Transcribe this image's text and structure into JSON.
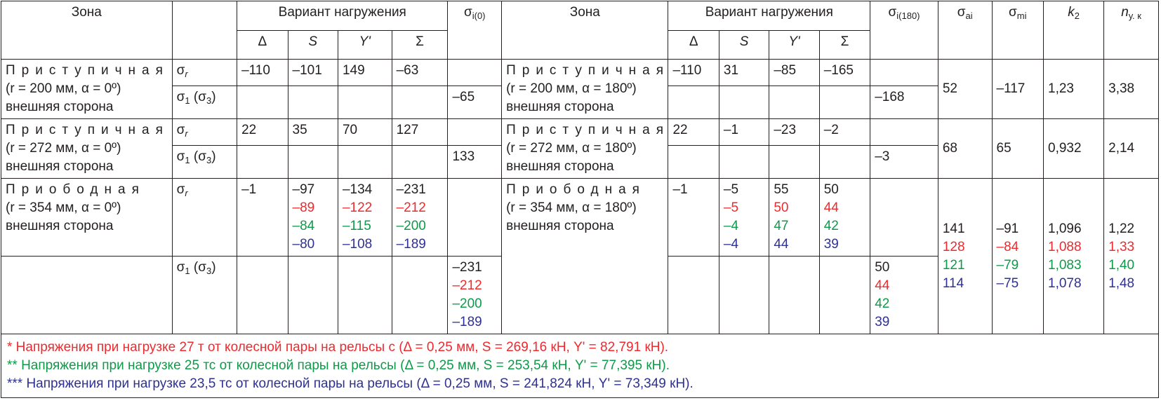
{
  "headers": {
    "zone": "Зона",
    "variant": "Вариант нагружения",
    "delta": "Δ",
    "s": "S",
    "y": "Y'",
    "sum": "Σ",
    "sigma_i0": "σi(0)",
    "zone2": "Зона",
    "variant2": "Вариант нагружения",
    "delta2": "Δ",
    "s2": "S",
    "y2": "Y'",
    "sum2": "Σ",
    "sigma_i180": "σi(180)",
    "sigma_ai": "σai",
    "sigma_mi": "σmi",
    "k2": "k2",
    "n_uk": "nу. к"
  },
  "row_labels": {
    "sigma_r": "σr",
    "sigma_1": "σ1 (σ3)"
  },
  "zones": [
    {
      "left_line1": "Приступичная",
      "left_line2": "(r = 200 мм, α = 0º)",
      "left_line3": "внешняя сторона",
      "right_line1": "Приступичная",
      "right_line2": "(r = 200 мм, α = 180º)",
      "right_line3": "внешняя сторона",
      "sr_left": [
        "–110",
        "–101",
        "149",
        "–63"
      ],
      "sr_right": [
        "–110",
        "31",
        "–85",
        "–165"
      ],
      "sigma_i0": "–65",
      "sigma_i180": "–168",
      "sigma_ai": "52",
      "sigma_mi": "–117",
      "k2": "1,23",
      "n_uk": "3,38"
    },
    {
      "left_line1": "Приступичная",
      "left_line2": "(r = 272 мм, α = 0º)",
      "left_line3": "внешняя сторона",
      "right_line1": "Приступичная",
      "right_line2": "(r = 272 мм, α = 180º)",
      "right_line3": "внешняя сторона",
      "sr_left": [
        "22",
        "35",
        "70",
        "127"
      ],
      "sr_right": [
        "22",
        "–1",
        "–23",
        "–2"
      ],
      "sigma_i0": "133",
      "sigma_i180": "–3",
      "sigma_ai": "68",
      "sigma_mi": "65",
      "k2": "0,932",
      "n_uk": "2,14"
    },
    {
      "left_line1": "Приободная",
      "left_line2": "(r = 354 мм, α = 0º)",
      "left_line3": "внешняя сторона",
      "right_line1": "Приободная",
      "right_line2": "(r = 354 мм, α = 180º)",
      "right_line3": "внешняя сторона",
      "sr_left": {
        "delta": [
          "–1"
        ],
        "s": [
          "–97",
          "–89",
          "–84",
          "–80"
        ],
        "y": [
          "–134",
          "–122",
          "–115",
          "–108"
        ],
        "sum": [
          "–231",
          "–212",
          "–200",
          "–189"
        ]
      },
      "sr_right": {
        "delta": [
          "–1"
        ],
        "s": [
          "–5",
          "–5",
          "–4",
          "–4"
        ],
        "y": [
          "55",
          "50",
          "47",
          "44"
        ],
        "sum": [
          "50",
          "44",
          "42",
          "39"
        ]
      },
      "sigma_i0": [
        "–231",
        "–212",
        "–200",
        "–189"
      ],
      "sigma_i180": [
        "50",
        "44",
        "42",
        "39"
      ],
      "sigma_ai": [
        "141",
        "128",
        "121",
        "114"
      ],
      "sigma_mi": [
        "–91",
        "–84",
        "–79",
        "–75"
      ],
      "k2": [
        "1,096",
        "1,088",
        "1,083",
        "1,078"
      ],
      "n_uk": [
        "1,22",
        "1,33",
        "1,40",
        "1,48"
      ]
    }
  ],
  "footnotes": [
    "* Напряжения при нагрузке 27 т от колесной пары на рельсы с (Δ = 0,25 мм, S = 269,16 кН, Y' = 82,791 кН).",
    "** Напряжения при нагрузке 25 тс от колесной пары на рельсы (Δ = 0,25 мм, S = 253,54 кН, Y' = 77,395 кН).",
    "*** Напряжения при нагрузке 23,5 тс от колесной пары на рельсы (Δ = 0,25 мм, S = 241,824 кН, Y' = 73,349 кН)."
  ],
  "colors": {
    "text": "#231f20",
    "red": "#ee2a2e",
    "green": "#0e9a48",
    "blue": "#2e3192"
  }
}
